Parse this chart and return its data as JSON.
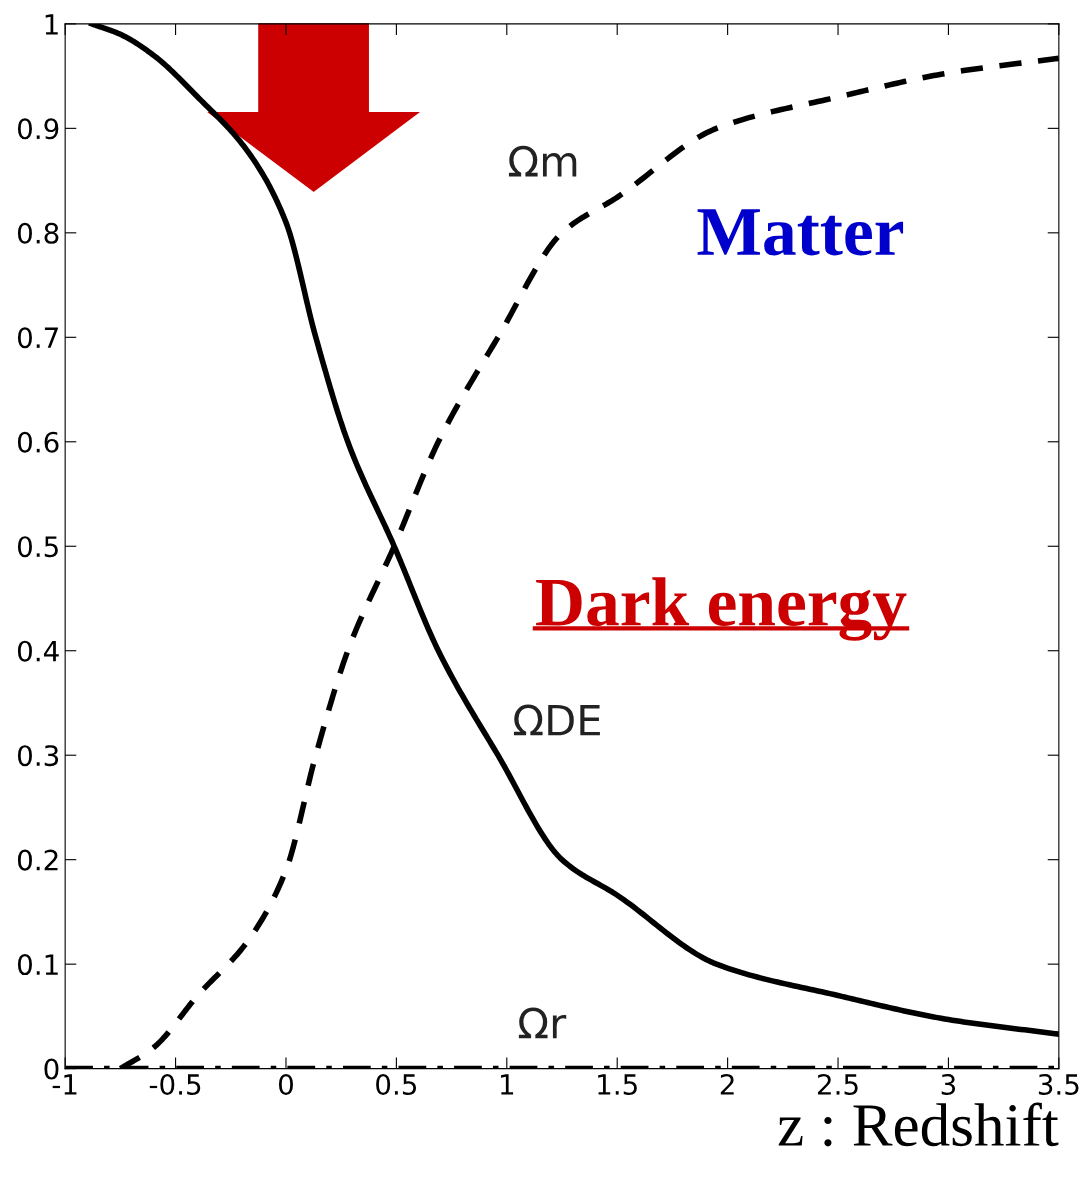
{
  "chart_data": {
    "type": "line",
    "xlabel": "z : Redshift",
    "x": [
      -0.88,
      -0.75,
      -0.6,
      -0.4,
      -0.17,
      0,
      0.135,
      0.28,
      0.49,
      0.69,
      0.96,
      1.25,
      1.5,
      1.95,
      2.5,
      3,
      3.5
    ],
    "series": [
      {
        "name": "Ωm",
        "color": "#000000",
        "line_style": "dashed",
        "values": [
          null,
          0,
          0.02,
          0.07,
          0.123,
          0.19,
          0.3,
          0.4,
          0.5,
          0.6,
          0.7,
          0.8,
          0.834,
          0.9,
          0.93,
          0.953,
          0.967
        ]
      },
      {
        "name": "ΩDE",
        "color": "#000000",
        "line_style": "solid",
        "values": [
          1,
          0.99,
          0.97,
          0.93,
          0.877,
          0.81,
          0.7,
          0.6,
          0.5,
          0.4,
          0.3,
          0.2,
          0.166,
          0.1,
          0.07,
          0.047,
          0.033
        ]
      },
      {
        "name": "Ωr",
        "color": "#000000",
        "line_style": "dashdot",
        "x": [
          -1,
          3.5
        ],
        "values": [
          0,
          0
        ]
      }
    ],
    "xlim": [
      -1,
      3.5
    ],
    "ylim": [
      0,
      1
    ],
    "xticks": [
      -1,
      -0.5,
      0,
      0.5,
      1,
      1.5,
      2,
      2.5,
      3,
      3.5
    ],
    "yticks": [
      0,
      0.1,
      0.2,
      0.3,
      0.4,
      0.5,
      0.6,
      0.7,
      0.8,
      0.9,
      1
    ],
    "grid": false,
    "legend": false,
    "annotations": [
      "Matter",
      "Dark energy"
    ]
  }
}
